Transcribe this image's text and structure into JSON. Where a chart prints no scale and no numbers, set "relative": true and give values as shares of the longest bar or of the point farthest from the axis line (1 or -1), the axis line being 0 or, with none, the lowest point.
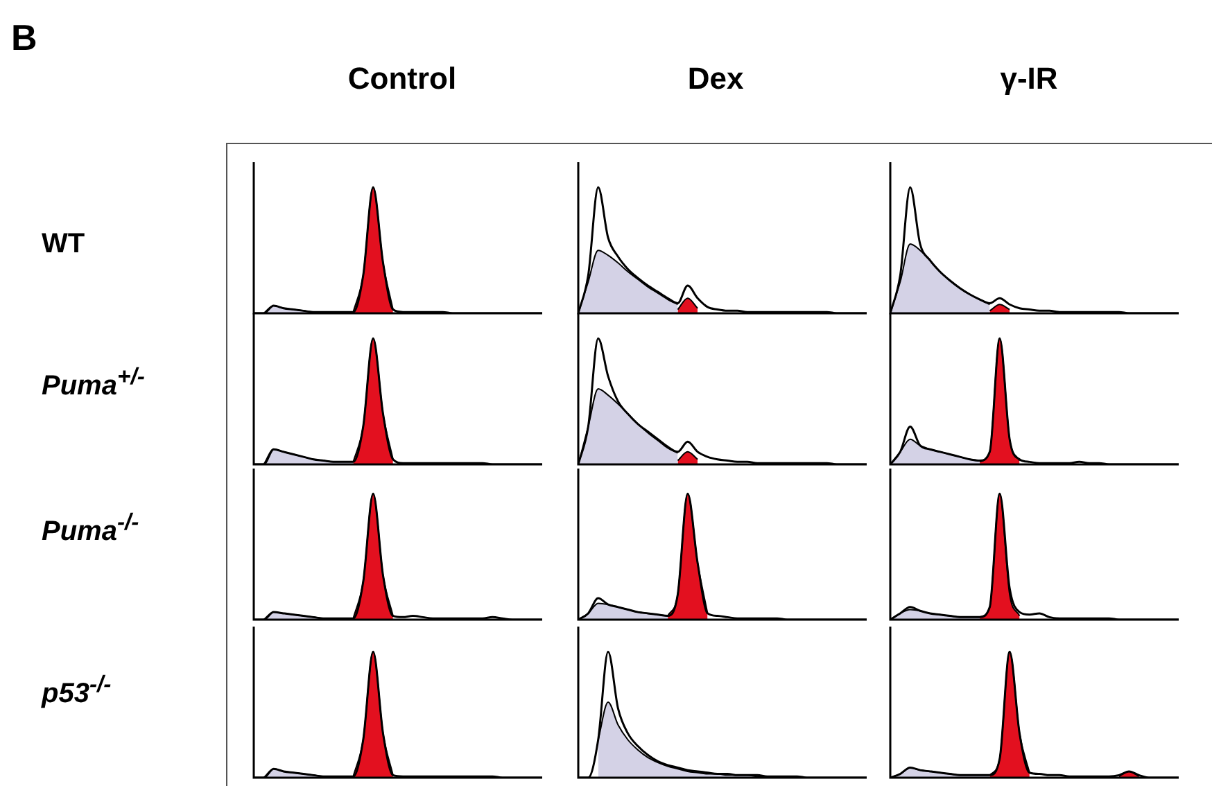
{
  "chart_data": [
    {
      "type": "other",
      "annotations": [
        "B",
        "Control",
        "Dex",
        "γ-IR",
        "WT",
        "Puma$^{+/-}$",
        "Puma$^{-/-}$",
        "p53$^{-/-}$"
      ]
    },
    {
      "type": "area",
      "relative": true,
      "categories": [
        null,
        null,
        null,
        null,
        null,
        null,
        null,
        null,
        null,
        null,
        null,
        null,
        null,
        null,
        null,
        null,
        null,
        null,
        null,
        null,
        null,
        null,
        null,
        null,
        null,
        null,
        null,
        null,
        null,
        null
      ],
      "series": [
        {
          "color": "#d4d2e6",
          "values": [
            null,
            0,
            0.06,
            0.04,
            0.03,
            0.02,
            0.01,
            0.01,
            0.01,
            0.01,
            0.01,
            null,
            null,
            null,
            null,
            null,
            null,
            null,
            null,
            null,
            null,
            null,
            null,
            null,
            null,
            null,
            null,
            null,
            null,
            null
          ]
        },
        {
          "color": "#e3101f",
          "values": [
            null,
            null,
            null,
            null,
            null,
            null,
            null,
            null,
            null,
            null,
            0.01,
            0.3,
            1,
            0.4,
            0.03,
            null,
            null,
            null,
            null,
            null,
            null,
            null,
            null,
            null,
            null,
            null,
            null,
            null,
            null,
            null
          ]
        },
        {
          "type": "line",
          "color": "#000000",
          "values": [
            0,
            0,
            0.06,
            0.04,
            0.03,
            0.02,
            0.01,
            0.01,
            0.01,
            0.01,
            0.01,
            0.3,
            1,
            0.4,
            0.03,
            0.01,
            0.01,
            0.01,
            0.01,
            0.01,
            0,
            0,
            0,
            0,
            0,
            0,
            0,
            0,
            0,
            0
          ]
        }
      ]
    },
    {
      "type": "area",
      "relative": true,
      "categories": [
        null,
        null,
        null,
        null,
        null,
        null,
        null,
        null,
        null,
        null,
        null,
        null,
        null,
        null,
        null,
        null,
        null,
        null,
        null,
        null,
        null,
        null,
        null,
        null,
        null,
        null,
        null,
        null,
        null,
        null
      ],
      "series": [
        {
          "color": "#d4d2e6",
          "values": [
            null,
            0,
            0.12,
            0.1,
            0.08,
            0.06,
            0.04,
            0.03,
            0.02,
            0.02,
            0.02,
            null,
            null,
            null,
            null,
            null,
            null,
            null,
            null,
            null,
            null,
            null,
            null,
            null,
            null,
            null,
            null,
            null,
            null,
            null
          ]
        },
        {
          "color": "#e3101f",
          "values": [
            null,
            null,
            null,
            null,
            null,
            null,
            null,
            null,
            null,
            null,
            0.02,
            0.3,
            1,
            0.4,
            0.04,
            null,
            null,
            null,
            null,
            null,
            null,
            null,
            null,
            null,
            null,
            null,
            null,
            null,
            null,
            null
          ]
        },
        {
          "type": "line",
          "color": "#000000",
          "values": [
            0,
            0,
            0.12,
            0.1,
            0.08,
            0.06,
            0.04,
            0.03,
            0.02,
            0.02,
            0.02,
            0.3,
            1,
            0.4,
            0.04,
            0.01,
            0.01,
            0.01,
            0.01,
            0.01,
            0.01,
            0.01,
            0.01,
            0.01,
            0,
            0,
            0,
            0,
            0,
            0
          ]
        }
      ]
    },
    {
      "type": "area",
      "relative": true,
      "categories": [
        null,
        null,
        null,
        null,
        null,
        null,
        null,
        null,
        null,
        null,
        null,
        null,
        null,
        null,
        null,
        null,
        null,
        null,
        null,
        null,
        null,
        null,
        null,
        null,
        null,
        null,
        null,
        null,
        null,
        null
      ],
      "series": [
        {
          "color": "#d4d2e6",
          "values": [
            null,
            0,
            0.06,
            0.05,
            0.04,
            0.03,
            0.02,
            0.01,
            0.01,
            0.01,
            0.01,
            null,
            null,
            null,
            null,
            null,
            null,
            null,
            null,
            null,
            null,
            null,
            null,
            null,
            null,
            null,
            null,
            null,
            null,
            null
          ]
        },
        {
          "color": "#e3101f",
          "values": [
            null,
            null,
            null,
            null,
            null,
            null,
            null,
            null,
            null,
            null,
            0.01,
            0.3,
            1,
            0.35,
            0.03,
            null,
            null,
            null,
            null,
            null,
            null,
            null,
            null,
            null,
            null,
            null,
            null,
            null,
            null,
            null
          ]
        },
        {
          "type": "line",
          "color": "#000000",
          "values": [
            0,
            0,
            0.06,
            0.05,
            0.04,
            0.03,
            0.02,
            0.01,
            0.01,
            0.01,
            0.01,
            0.3,
            1,
            0.35,
            0.03,
            0.02,
            0.03,
            0.02,
            0.01,
            0.01,
            0.01,
            0.01,
            0.01,
            0.01,
            0.02,
            0.01,
            0,
            0,
            0,
            0
          ]
        }
      ]
    },
    {
      "type": "area",
      "relative": true,
      "categories": [
        null,
        null,
        null,
        null,
        null,
        null,
        null,
        null,
        null,
        null,
        null,
        null,
        null,
        null,
        null,
        null,
        null,
        null,
        null,
        null,
        null,
        null,
        null,
        null,
        null,
        null,
        null,
        null,
        null,
        null
      ],
      "series": [
        {
          "color": "#d4d2e6",
          "values": [
            null,
            0,
            0.07,
            0.05,
            0.04,
            0.03,
            0.02,
            0.01,
            0.01,
            0.01,
            0.01,
            null,
            null,
            null,
            null,
            null,
            null,
            null,
            null,
            null,
            null,
            null,
            null,
            null,
            null,
            null,
            null,
            null,
            null,
            null
          ]
        },
        {
          "color": "#e3101f",
          "values": [
            null,
            null,
            null,
            null,
            null,
            null,
            null,
            null,
            null,
            null,
            0.01,
            0.3,
            1,
            0.35,
            0.02,
            null,
            null,
            null,
            null,
            null,
            null,
            null,
            null,
            null,
            null,
            null,
            null,
            null,
            null,
            null
          ]
        },
        {
          "type": "line",
          "color": "#000000",
          "values": [
            0,
            0,
            0.07,
            0.05,
            0.04,
            0.03,
            0.02,
            0.01,
            0.01,
            0.01,
            0.01,
            0.3,
            1,
            0.35,
            0.02,
            0.01,
            0.01,
            0.01,
            0.01,
            0.01,
            0.01,
            0.01,
            0.01,
            0.01,
            0.01,
            0,
            0,
            0,
            0,
            0
          ]
        }
      ]
    },
    {
      "type": "area",
      "relative": true,
      "categories": [
        null,
        null,
        null,
        null,
        null,
        null,
        null,
        null,
        null,
        null,
        null,
        null,
        null,
        null,
        null,
        null,
        null,
        null,
        null,
        null,
        null,
        null,
        null,
        null,
        null,
        null,
        null,
        null,
        null,
        null
      ],
      "series": [
        {
          "color": "#d4d2e6",
          "values": [
            0,
            0.25,
            0.5,
            0.46,
            0.4,
            0.33,
            0.27,
            0.21,
            0.16,
            0.11,
            0.07,
            null,
            null,
            null,
            null,
            null,
            null,
            null,
            null,
            null,
            null,
            null,
            null,
            null,
            null,
            null,
            null,
            null,
            null,
            null
          ]
        },
        {
          "color": "#e3101f",
          "values": [
            null,
            null,
            null,
            null,
            null,
            null,
            null,
            null,
            null,
            null,
            0.03,
            0.12,
            0.04,
            null,
            null,
            null,
            null,
            null,
            null,
            null,
            null,
            null,
            null,
            null,
            null,
            null,
            null,
            null,
            null,
            null
          ]
        },
        {
          "type": "line",
          "color": "#000000",
          "values": [
            0,
            0.3,
            1,
            0.6,
            0.45,
            0.35,
            0.28,
            0.22,
            0.17,
            0.12,
            0.08,
            0.22,
            0.12,
            0.05,
            0.03,
            0.02,
            0.02,
            0.01,
            0.01,
            0.01,
            0.01,
            0.01,
            0.01,
            0.01,
            0.01,
            0.01,
            0,
            0,
            0,
            0
          ]
        }
      ]
    },
    {
      "type": "area",
      "relative": true,
      "categories": [
        null,
        null,
        null,
        null,
        null,
        null,
        null,
        null,
        null,
        null,
        null,
        null,
        null,
        null,
        null,
        null,
        null,
        null,
        null,
        null,
        null,
        null,
        null,
        null,
        null,
        null,
        null,
        null,
        null,
        null
      ],
      "series": [
        {
          "color": "#d4d2e6",
          "values": [
            0,
            0.3,
            0.6,
            0.55,
            0.48,
            0.4,
            0.32,
            0.25,
            0.19,
            0.13,
            0.09,
            null,
            null,
            null,
            null,
            null,
            null,
            null,
            null,
            null,
            null,
            null,
            null,
            null,
            null,
            null,
            null,
            null,
            null,
            null
          ]
        },
        {
          "color": "#e3101f",
          "values": [
            null,
            null,
            null,
            null,
            null,
            null,
            null,
            null,
            null,
            null,
            0.03,
            0.1,
            0.04,
            null,
            null,
            null,
            null,
            null,
            null,
            null,
            null,
            null,
            null,
            null,
            null,
            null,
            null,
            null,
            null,
            null
          ]
        },
        {
          "type": "line",
          "color": "#000000",
          "values": [
            0,
            0.3,
            1,
            0.7,
            0.5,
            0.4,
            0.32,
            0.26,
            0.2,
            0.14,
            0.1,
            0.18,
            0.1,
            0.06,
            0.04,
            0.03,
            0.02,
            0.02,
            0.01,
            0.01,
            0.01,
            0.01,
            0.01,
            0.01,
            0.01,
            0.01,
            0,
            0,
            0,
            0
          ]
        }
      ]
    },
    {
      "type": "area",
      "relative": true,
      "categories": [
        null,
        null,
        null,
        null,
        null,
        null,
        null,
        null,
        null,
        null,
        null,
        null,
        null,
        null,
        null,
        null,
        null,
        null,
        null,
        null,
        null,
        null,
        null,
        null,
        null,
        null,
        null,
        null,
        null,
        null
      ],
      "series": [
        {
          "color": "#d4d2e6",
          "values": [
            0,
            0.05,
            0.13,
            0.12,
            0.1,
            0.08,
            0.06,
            0.05,
            0.04,
            0.03,
            null,
            null,
            null,
            null,
            null,
            null,
            null,
            null,
            null,
            null,
            null,
            null,
            null,
            null,
            null,
            null,
            null,
            null,
            null,
            null
          ]
        },
        {
          "color": "#e3101f",
          "values": [
            null,
            null,
            null,
            null,
            null,
            null,
            null,
            null,
            null,
            0.03,
            0.2,
            1,
            0.45,
            0.05,
            null,
            null,
            null,
            null,
            null,
            null,
            null,
            null,
            null,
            null,
            null,
            null,
            null,
            null,
            null,
            null
          ]
        },
        {
          "type": "line",
          "color": "#000000",
          "values": [
            0,
            0.05,
            0.17,
            0.12,
            0.1,
            0.08,
            0.06,
            0.05,
            0.04,
            0.03,
            0.2,
            1,
            0.45,
            0.05,
            0.03,
            0.02,
            0.01,
            0.01,
            0.01,
            0.01,
            0.01,
            0,
            0,
            0,
            0,
            0,
            0,
            0,
            0,
            0
          ]
        }
      ]
    },
    {
      "type": "area",
      "relative": true,
      "categories": [
        null,
        null,
        null,
        null,
        null,
        null,
        null,
        null,
        null,
        null,
        null,
        null,
        null,
        null,
        null,
        null,
        null,
        null,
        null,
        null,
        null,
        null,
        null,
        null,
        null,
        null,
        null,
        null,
        null,
        null
      ],
      "series": [
        {
          "color": "#d4d2e6",
          "values": [
            null,
            null,
            0.3,
            0.6,
            0.42,
            0.3,
            0.22,
            0.16,
            0.12,
            0.09,
            0.07,
            0.05,
            0.04,
            0.03,
            0.03,
            0.02,
            0.02,
            0.02,
            0.01,
            0.01,
            null,
            null,
            null,
            null,
            null,
            null,
            null,
            null,
            null,
            null
          ]
        },
        {
          "type": "line",
          "color": "#000000",
          "values": [
            0,
            0,
            0.3,
            1,
            0.55,
            0.35,
            0.25,
            0.18,
            0.13,
            0.1,
            0.08,
            0.06,
            0.05,
            0.04,
            0.03,
            0.03,
            0.02,
            0.02,
            0.02,
            0.01,
            0.01,
            0.01,
            0.01,
            0,
            0,
            0,
            0,
            0,
            0,
            0
          ]
        }
      ]
    },
    {
      "type": "area",
      "relative": true,
      "categories": [
        null,
        null,
        null,
        null,
        null,
        null,
        null,
        null,
        null,
        null,
        null,
        null,
        null,
        null,
        null,
        null,
        null,
        null,
        null,
        null,
        null,
        null,
        null,
        null,
        null,
        null,
        null,
        null,
        null,
        null
      ],
      "series": [
        {
          "color": "#d4d2e6",
          "values": [
            0,
            0.25,
            0.55,
            0.5,
            0.42,
            0.33,
            0.26,
            0.2,
            0.15,
            0.11,
            0.07,
            null,
            null,
            null,
            null,
            null,
            null,
            null,
            null,
            null,
            null,
            null,
            null,
            null,
            null,
            null,
            null,
            null,
            null,
            null
          ]
        },
        {
          "color": "#e3101f",
          "values": [
            null,
            null,
            null,
            null,
            null,
            null,
            null,
            null,
            null,
            null,
            0.02,
            0.07,
            0.03,
            null,
            null,
            null,
            null,
            null,
            null,
            null,
            null,
            null,
            null,
            null,
            null,
            null,
            null,
            null,
            null,
            null
          ]
        },
        {
          "type": "line",
          "color": "#000000",
          "values": [
            0,
            0.3,
            1,
            0.55,
            0.42,
            0.33,
            0.26,
            0.2,
            0.15,
            0.11,
            0.08,
            0.12,
            0.07,
            0.04,
            0.03,
            0.02,
            0.02,
            0.01,
            0.01,
            0.01,
            0.01,
            0.01,
            0.01,
            0.01,
            0,
            0,
            0,
            0,
            0,
            0
          ]
        }
      ]
    },
    {
      "type": "area",
      "relative": true,
      "categories": [
        null,
        null,
        null,
        null,
        null,
        null,
        null,
        null,
        null,
        null,
        null,
        null,
        null,
        null,
        null,
        null,
        null,
        null,
        null,
        null,
        null,
        null,
        null,
        null,
        null,
        null,
        null,
        null,
        null,
        null
      ],
      "series": [
        {
          "color": "#d4d2e6",
          "values": [
            0,
            0.1,
            0.2,
            0.15,
            0.12,
            0.1,
            0.08,
            0.06,
            0.04,
            0.03,
            null,
            null,
            null,
            null,
            null,
            null,
            null,
            null,
            null,
            null,
            null,
            null,
            null,
            null,
            null,
            null,
            null,
            null,
            null,
            null
          ]
        },
        {
          "color": "#e3101f",
          "values": [
            null,
            null,
            null,
            null,
            null,
            null,
            null,
            null,
            null,
            0.02,
            0.1,
            1,
            0.2,
            0.03,
            null,
            null,
            null,
            null,
            null,
            null,
            null,
            null,
            null,
            null,
            null,
            null,
            null,
            null,
            null,
            null
          ]
        },
        {
          "type": "line",
          "color": "#000000",
          "values": [
            0,
            0.1,
            0.3,
            0.15,
            0.12,
            0.1,
            0.08,
            0.06,
            0.04,
            0.03,
            0.1,
            1,
            0.2,
            0.04,
            0.02,
            0.01,
            0.01,
            0.01,
            0.01,
            0.02,
            0.01,
            0.01,
            0,
            0,
            0,
            0,
            0,
            0,
            0,
            0
          ]
        }
      ]
    },
    {
      "type": "area",
      "relative": true,
      "categories": [
        null,
        null,
        null,
        null,
        null,
        null,
        null,
        null,
        null,
        null,
        null,
        null,
        null,
        null,
        null,
        null,
        null,
        null,
        null,
        null,
        null,
        null,
        null,
        null,
        null,
        null,
        null,
        null,
        null,
        null
      ],
      "series": [
        {
          "color": "#d4d2e6",
          "values": [
            0,
            0.05,
            0.08,
            0.07,
            0.05,
            0.04,
            0.03,
            0.02,
            0.02,
            0.02,
            null,
            null,
            null,
            null,
            null,
            null,
            null,
            null,
            null,
            null,
            null,
            null,
            null,
            null,
            null,
            null,
            null,
            null,
            null,
            null
          ]
        },
        {
          "color": "#e3101f",
          "values": [
            null,
            null,
            null,
            null,
            null,
            null,
            null,
            null,
            null,
            0.02,
            0.1,
            1,
            0.2,
            0.03,
            null,
            null,
            null,
            null,
            null,
            null,
            null,
            null,
            null,
            null,
            null,
            null,
            null,
            null,
            null,
            null
          ]
        },
        {
          "type": "line",
          "color": "#000000",
          "values": [
            0,
            0.05,
            0.1,
            0.07,
            0.05,
            0.04,
            0.03,
            0.02,
            0.02,
            0.02,
            0.1,
            1,
            0.25,
            0.06,
            0.04,
            0.05,
            0.02,
            0.01,
            0.01,
            0.01,
            0.01,
            0.01,
            0.01,
            0,
            0,
            0,
            0,
            0,
            0,
            0
          ]
        }
      ]
    },
    {
      "type": "area",
      "relative": true,
      "categories": [
        null,
        null,
        null,
        null,
        null,
        null,
        null,
        null,
        null,
        null,
        null,
        null,
        null,
        null,
        null,
        null,
        null,
        null,
        null,
        null,
        null,
        null,
        null,
        null,
        null,
        null,
        null,
        null,
        null,
        null
      ],
      "series": [
        {
          "color": "#d4d2e6",
          "values": [
            0,
            0.03,
            0.08,
            0.06,
            0.05,
            0.04,
            0.03,
            0.02,
            0.02,
            0.02,
            0.02,
            null,
            null,
            null,
            null,
            null,
            null,
            null,
            null,
            null,
            null,
            null,
            null,
            null,
            null,
            null,
            null,
            null,
            null,
            null
          ]
        },
        {
          "color": "#e3101f",
          "values": [
            null,
            null,
            null,
            null,
            null,
            null,
            null,
            null,
            null,
            null,
            0.02,
            0.15,
            1,
            0.35,
            0.04,
            null,
            null,
            null,
            null,
            null,
            null,
            null,
            null,
            0.01,
            0.05,
            0.01,
            null,
            null,
            null,
            null
          ]
        },
        {
          "type": "line",
          "color": "#000000",
          "values": [
            0,
            0.03,
            0.08,
            0.06,
            0.05,
            0.04,
            0.03,
            0.02,
            0.02,
            0.02,
            0.02,
            0.15,
            1,
            0.35,
            0.04,
            0.03,
            0.02,
            0.02,
            0.01,
            0.01,
            0.01,
            0.01,
            0.01,
            0.02,
            0.05,
            0.02,
            0,
            0,
            0,
            0
          ]
        }
      ]
    }
  ]
}
